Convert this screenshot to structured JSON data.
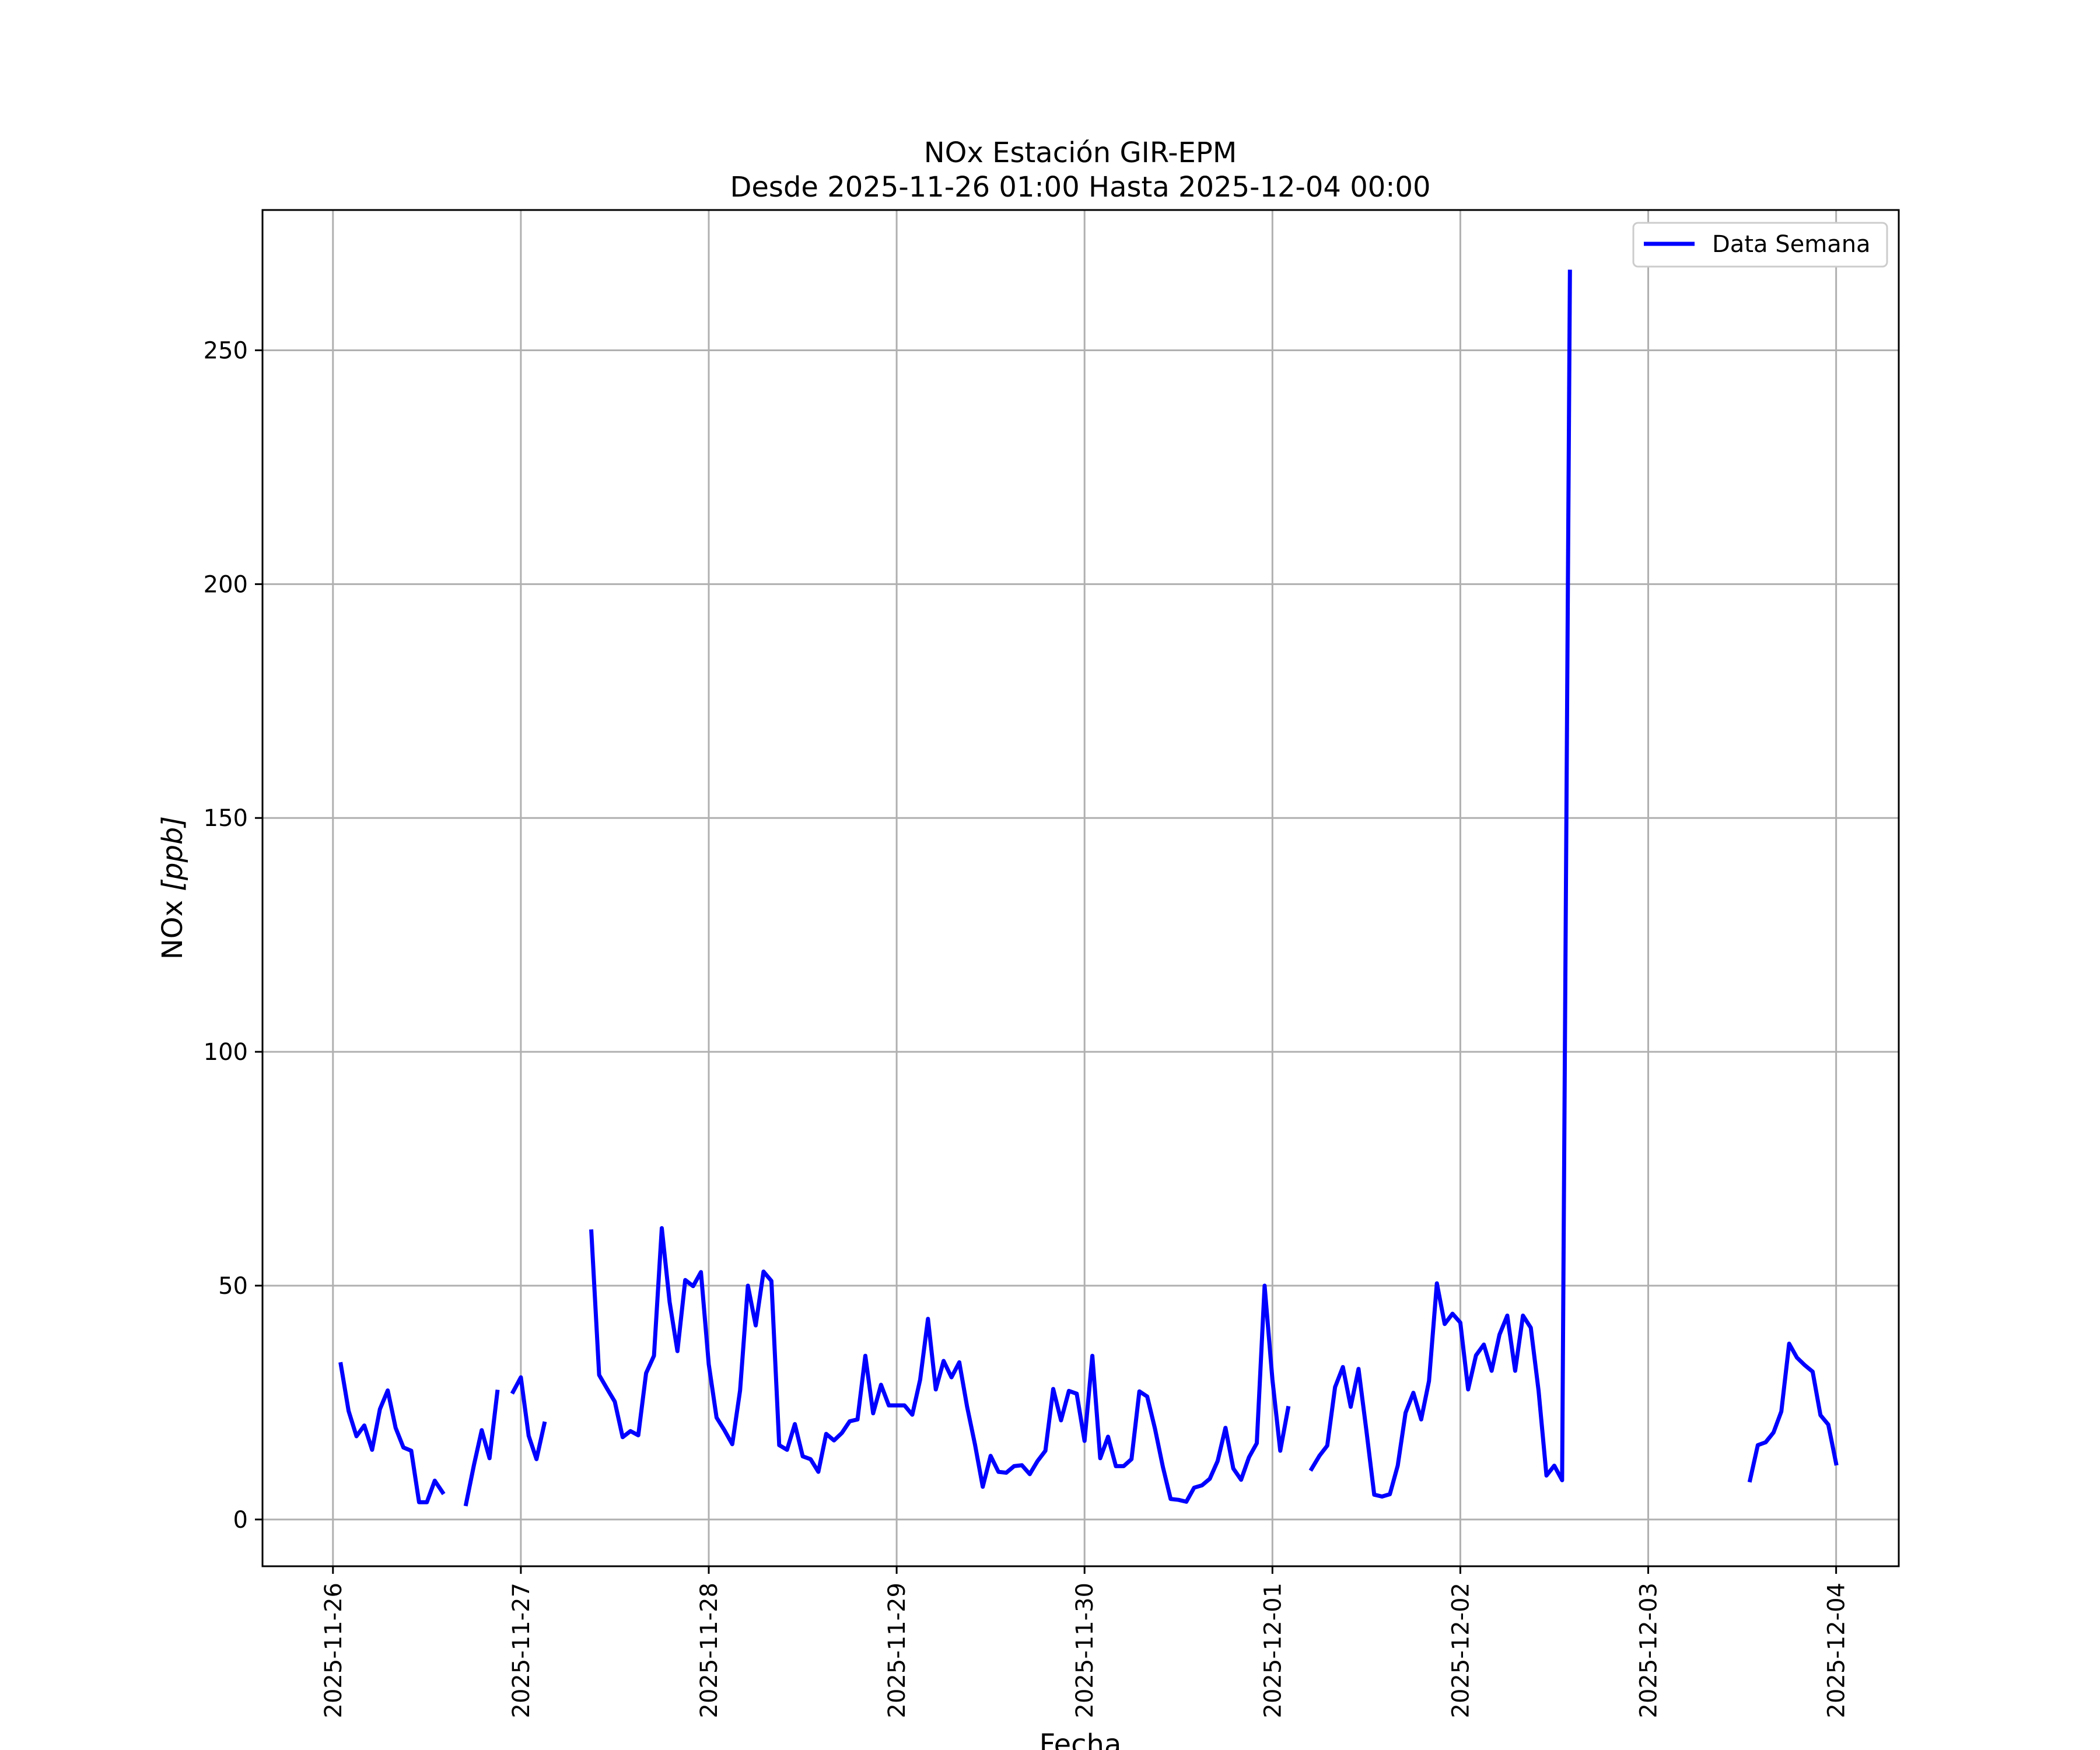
{
  "chart_data": {
    "type": "line",
    "title": "NOx Estación GIR-EPM",
    "subtitle": "Desde 2025-11-26 01:00 Hasta 2025-12-04 00:00",
    "xlabel": "Fecha",
    "ylabel_main": "NOx ",
    "ylabel_unit": "[ppb]",
    "x_tick_labels": [
      "2025-11-26",
      "2025-11-27",
      "2025-11-28",
      "2025-11-29",
      "2025-11-30",
      "2025-12-01",
      "2025-12-02",
      "2025-12-03",
      "2025-12-04"
    ],
    "y_ticks": [
      0,
      50,
      100,
      150,
      200,
      250
    ],
    "xlim": [
      "2025-11-25T15:00",
      "2025-12-04T08:00"
    ],
    "ylim": [
      -10,
      280
    ],
    "grid": true,
    "legend_position": "top-right",
    "series": [
      {
        "name": "Data Semana",
        "color": "#0000ff",
        "segments": [
          [
            [
              "2025-11-26T01:00",
              33.2
            ],
            [
              "2025-11-26T02:00",
              23.2
            ],
            [
              "2025-11-26T03:00",
              17.8
            ],
            [
              "2025-11-26T04:00",
              20.1
            ],
            [
              "2025-11-26T05:00",
              14.9
            ],
            [
              "2025-11-26T06:00",
              23.6
            ],
            [
              "2025-11-26T07:00",
              27.6
            ],
            [
              "2025-11-26T08:00",
              19.6
            ],
            [
              "2025-11-26T09:00",
              15.4
            ],
            [
              "2025-11-26T10:00",
              14.7
            ],
            [
              "2025-11-26T11:00",
              3.7
            ],
            [
              "2025-11-26T12:00",
              3.7
            ],
            [
              "2025-11-26T13:00",
              8.3
            ],
            [
              "2025-11-26T14:00",
              5.8
            ]
          ],
          [
            [
              "2025-11-26T17:00",
              3.3
            ],
            [
              "2025-11-26T18:00",
              11.6
            ],
            [
              "2025-11-26T19:00",
              19.1
            ],
            [
              "2025-11-26T20:00",
              13.1
            ],
            [
              "2025-11-26T21:00",
              27.3
            ]
          ],
          [
            [
              "2025-11-26T23:00",
              27.3
            ],
            [
              "2025-11-27T00:00",
              30.4
            ],
            [
              "2025-11-27T01:00",
              17.9
            ],
            [
              "2025-11-27T02:00",
              12.9
            ],
            [
              "2025-11-27T03:00",
              20.5
            ]
          ],
          [
            [
              "2025-11-27T09:00",
              61.6
            ],
            [
              "2025-11-27T10:00",
              30.9
            ],
            [
              "2025-11-27T11:00",
              28.0
            ],
            [
              "2025-11-27T12:00",
              25.2
            ],
            [
              "2025-11-27T13:00",
              17.6
            ],
            [
              "2025-11-27T14:00",
              18.9
            ],
            [
              "2025-11-27T15:00",
              18.0
            ],
            [
              "2025-11-27T16:00",
              31.3
            ],
            [
              "2025-11-27T17:00",
              35.0
            ],
            [
              "2025-11-27T18:00",
              62.3
            ],
            [
              "2025-11-27T19:00",
              46.5
            ],
            [
              "2025-11-27T20:00",
              36.0
            ],
            [
              "2025-11-27T21:00",
              51.2
            ],
            [
              "2025-11-27T22:00",
              49.9
            ],
            [
              "2025-11-27T23:00",
              52.9
            ],
            [
              "2025-11-28T00:00",
              33.2
            ],
            [
              "2025-11-28T01:00",
              21.8
            ],
            [
              "2025-11-28T02:00",
              19.1
            ],
            [
              "2025-11-28T03:00",
              16.1
            ],
            [
              "2025-11-28T04:00",
              27.6
            ],
            [
              "2025-11-28T05:00",
              50.0
            ],
            [
              "2025-11-28T06:00",
              41.5
            ],
            [
              "2025-11-28T07:00",
              53.0
            ],
            [
              "2025-11-28T08:00",
              51.0
            ],
            [
              "2025-11-28T09:00",
              15.9
            ],
            [
              "2025-11-28T10:00",
              14.9
            ],
            [
              "2025-11-28T11:00",
              20.4
            ],
            [
              "2025-11-28T12:00",
              13.5
            ],
            [
              "2025-11-28T13:00",
              12.9
            ],
            [
              "2025-11-28T14:00",
              10.2
            ],
            [
              "2025-11-28T15:00",
              18.3
            ],
            [
              "2025-11-28T16:00",
              16.9
            ],
            [
              "2025-11-28T17:00",
              18.5
            ],
            [
              "2025-11-28T18:00",
              21.0
            ],
            [
              "2025-11-28T19:00",
              21.4
            ],
            [
              "2025-11-28T20:00",
              35.0
            ],
            [
              "2025-11-28T21:00",
              22.7
            ],
            [
              "2025-11-28T22:00",
              28.8
            ],
            [
              "2025-11-28T23:00",
              24.4
            ],
            [
              "2025-11-29T00:00",
              24.4
            ],
            [
              "2025-11-29T01:00",
              24.4
            ],
            [
              "2025-11-29T02:00",
              22.4
            ],
            [
              "2025-11-29T03:00",
              29.9
            ],
            [
              "2025-11-29T04:00",
              42.9
            ],
            [
              "2025-11-29T05:00",
              27.8
            ],
            [
              "2025-11-29T06:00",
              33.9
            ],
            [
              "2025-11-29T07:00",
              30.4
            ],
            [
              "2025-11-29T08:00",
              33.6
            ],
            [
              "2025-11-29T09:00",
              24.1
            ],
            [
              "2025-11-29T10:00",
              16.1
            ],
            [
              "2025-11-29T11:00",
              7.0
            ],
            [
              "2025-11-29T12:00",
              13.6
            ],
            [
              "2025-11-29T13:00",
              10.2
            ],
            [
              "2025-11-29T14:00",
              10.0
            ],
            [
              "2025-11-29T15:00",
              11.4
            ],
            [
              "2025-11-29T16:00",
              11.6
            ],
            [
              "2025-11-29T17:00",
              9.7
            ],
            [
              "2025-11-29T18:00",
              12.5
            ],
            [
              "2025-11-29T19:00",
              14.7
            ],
            [
              "2025-11-29T20:00",
              27.9
            ],
            [
              "2025-11-29T21:00",
              21.2
            ],
            [
              "2025-11-29T22:00",
              27.5
            ],
            [
              "2025-11-29T23:00",
              26.9
            ],
            [
              "2025-11-30T00:00",
              16.8
            ],
            [
              "2025-11-30T01:00",
              35.0
            ],
            [
              "2025-11-30T02:00",
              13.1
            ],
            [
              "2025-11-30T03:00",
              17.7
            ],
            [
              "2025-11-30T04:00",
              11.4
            ],
            [
              "2025-11-30T05:00",
              11.4
            ],
            [
              "2025-11-30T06:00",
              12.9
            ],
            [
              "2025-11-30T07:00",
              27.4
            ],
            [
              "2025-11-30T08:00",
              26.3
            ],
            [
              "2025-11-30T09:00",
              19.4
            ],
            [
              "2025-11-30T10:00",
              11.3
            ],
            [
              "2025-11-30T11:00",
              4.4
            ],
            [
              "2025-11-30T12:00",
              4.2
            ],
            [
              "2025-11-30T13:00",
              3.8
            ],
            [
              "2025-11-30T14:00",
              6.8
            ],
            [
              "2025-11-30T15:00",
              7.3
            ],
            [
              "2025-11-30T16:00",
              8.7
            ],
            [
              "2025-11-30T17:00",
              12.5
            ],
            [
              "2025-11-30T18:00",
              19.6
            ],
            [
              "2025-11-30T19:00",
              10.9
            ],
            [
              "2025-11-30T20:00",
              8.5
            ],
            [
              "2025-11-30T21:00",
              13.3
            ],
            [
              "2025-11-30T22:00",
              16.3
            ],
            [
              "2025-11-30T23:00",
              50.0
            ],
            [
              "2025-12-01T00:00",
              29.9
            ],
            [
              "2025-12-01T01:00",
              14.7
            ],
            [
              "2025-12-01T02:00",
              23.8
            ]
          ],
          [
            [
              "2025-12-01T05:00",
              10.8
            ],
            [
              "2025-12-01T06:00",
              13.6
            ],
            [
              "2025-12-01T07:00",
              15.8
            ],
            [
              "2025-12-01T08:00",
              28.3
            ],
            [
              "2025-12-01T09:00",
              32.6
            ],
            [
              "2025-12-01T10:00",
              24.1
            ],
            [
              "2025-12-01T11:00",
              32.2
            ],
            [
              "2025-12-01T12:00",
              19.0
            ],
            [
              "2025-12-01T13:00",
              5.3
            ],
            [
              "2025-12-01T14:00",
              4.9
            ],
            [
              "2025-12-01T15:00",
              5.4
            ],
            [
              "2025-12-01T16:00",
              11.5
            ],
            [
              "2025-12-01T17:00",
              22.8
            ],
            [
              "2025-12-01T18:00",
              27.1
            ],
            [
              "2025-12-01T19:00",
              21.4
            ],
            [
              "2025-12-01T20:00",
              29.6
            ],
            [
              "2025-12-01T21:00",
              50.5
            ],
            [
              "2025-12-01T22:00",
              41.8
            ],
            [
              "2025-12-01T23:00",
              44.0
            ],
            [
              "2025-12-02T00:00",
              42.1
            ],
            [
              "2025-12-02T01:00",
              27.8
            ],
            [
              "2025-12-02T02:00",
              35.1
            ],
            [
              "2025-12-02T03:00",
              37.4
            ],
            [
              "2025-12-02T04:00",
              31.8
            ],
            [
              "2025-12-02T05:00",
              39.5
            ],
            [
              "2025-12-02T06:00",
              43.6
            ],
            [
              "2025-12-02T07:00",
              31.8
            ],
            [
              "2025-12-02T08:00",
              43.6
            ],
            [
              "2025-12-02T09:00",
              41.0
            ],
            [
              "2025-12-02T10:00",
              27.5
            ],
            [
              "2025-12-02T11:00",
              9.4
            ],
            [
              "2025-12-02T12:00",
              11.5
            ],
            [
              "2025-12-02T13:00",
              8.4
            ],
            [
              "2025-12-02T14:00",
              266.8
            ]
          ],
          [
            [
              "2025-12-03T13:00",
              8.4
            ],
            [
              "2025-12-03T14:00",
              15.9
            ],
            [
              "2025-12-03T15:00",
              16.5
            ],
            [
              "2025-12-03T16:00",
              18.6
            ],
            [
              "2025-12-03T17:00",
              23.1
            ],
            [
              "2025-12-03T18:00",
              37.6
            ],
            [
              "2025-12-03T19:00",
              34.6
            ],
            [
              "2025-12-03T20:00",
              33.0
            ],
            [
              "2025-12-03T21:00",
              31.6
            ],
            [
              "2025-12-03T22:00",
              22.3
            ],
            [
              "2025-12-03T23:00",
              20.3
            ],
            [
              "2025-12-04T00:00",
              12.0
            ]
          ]
        ]
      }
    ]
  }
}
